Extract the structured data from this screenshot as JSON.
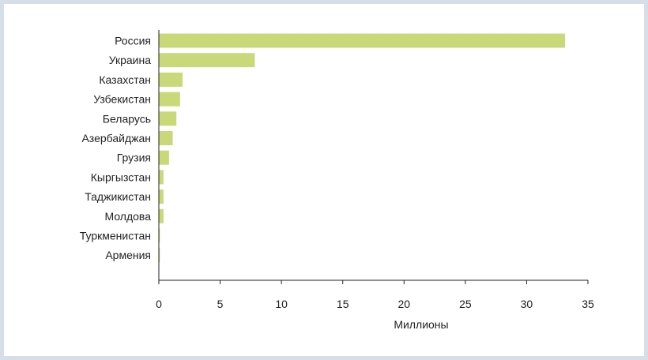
{
  "chart_data": {
    "type": "bar",
    "orientation": "horizontal",
    "categories": [
      "Россия",
      "Украина",
      "Казахстан",
      "Узбекистан",
      "Беларусь",
      "Азербайджан",
      "Грузия",
      "Кыргызстан",
      "Таджикистан",
      "Молдова",
      "Туркменистан",
      "Армения"
    ],
    "values": [
      33.1,
      7.8,
      1.9,
      1.7,
      1.4,
      1.1,
      0.8,
      0.35,
      0.35,
      0.35,
      0.05,
      0.05
    ],
    "xlabel": "Миллионы",
    "ylabel": "",
    "xlim": [
      0,
      35
    ],
    "xticks": [
      "0",
      "5",
      "10",
      "15",
      "20",
      "25",
      "30",
      "35"
    ],
    "grid": false,
    "bar_color": "#c9d97a"
  }
}
